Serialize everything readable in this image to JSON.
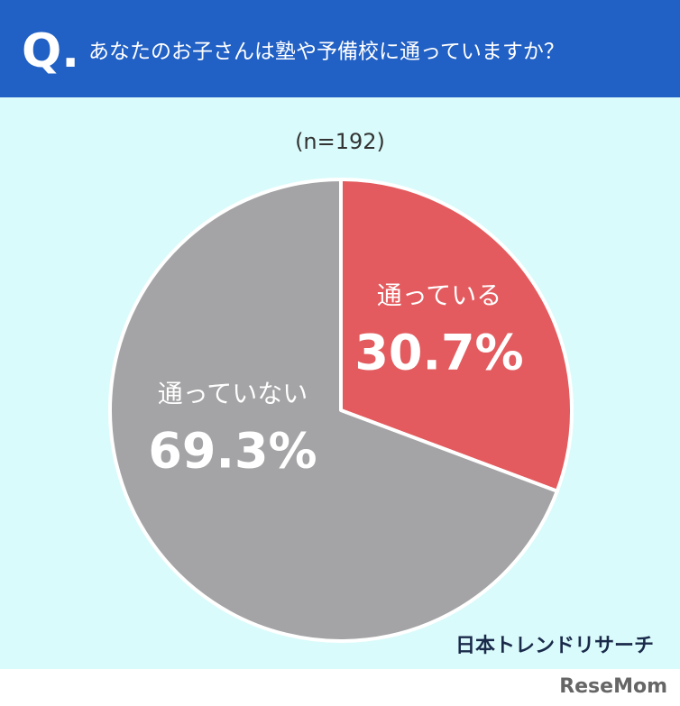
{
  "chart_data": {
    "type": "pie",
    "title_marker": "Q.",
    "title": "あなたのお子さんは塾や予備校に通っていますか？",
    "subtitle": "(n=192)",
    "categories": [
      "通っている",
      "通っていない"
    ],
    "values": [
      30.7,
      69.3
    ],
    "value_labels": [
      "30.7%",
      "69.3%"
    ],
    "colors": [
      "#e35b5e",
      "#a4a3a5"
    ],
    "annotations": [
      "日本トレンドリサーチ",
      "ReseMom"
    ]
  }
}
